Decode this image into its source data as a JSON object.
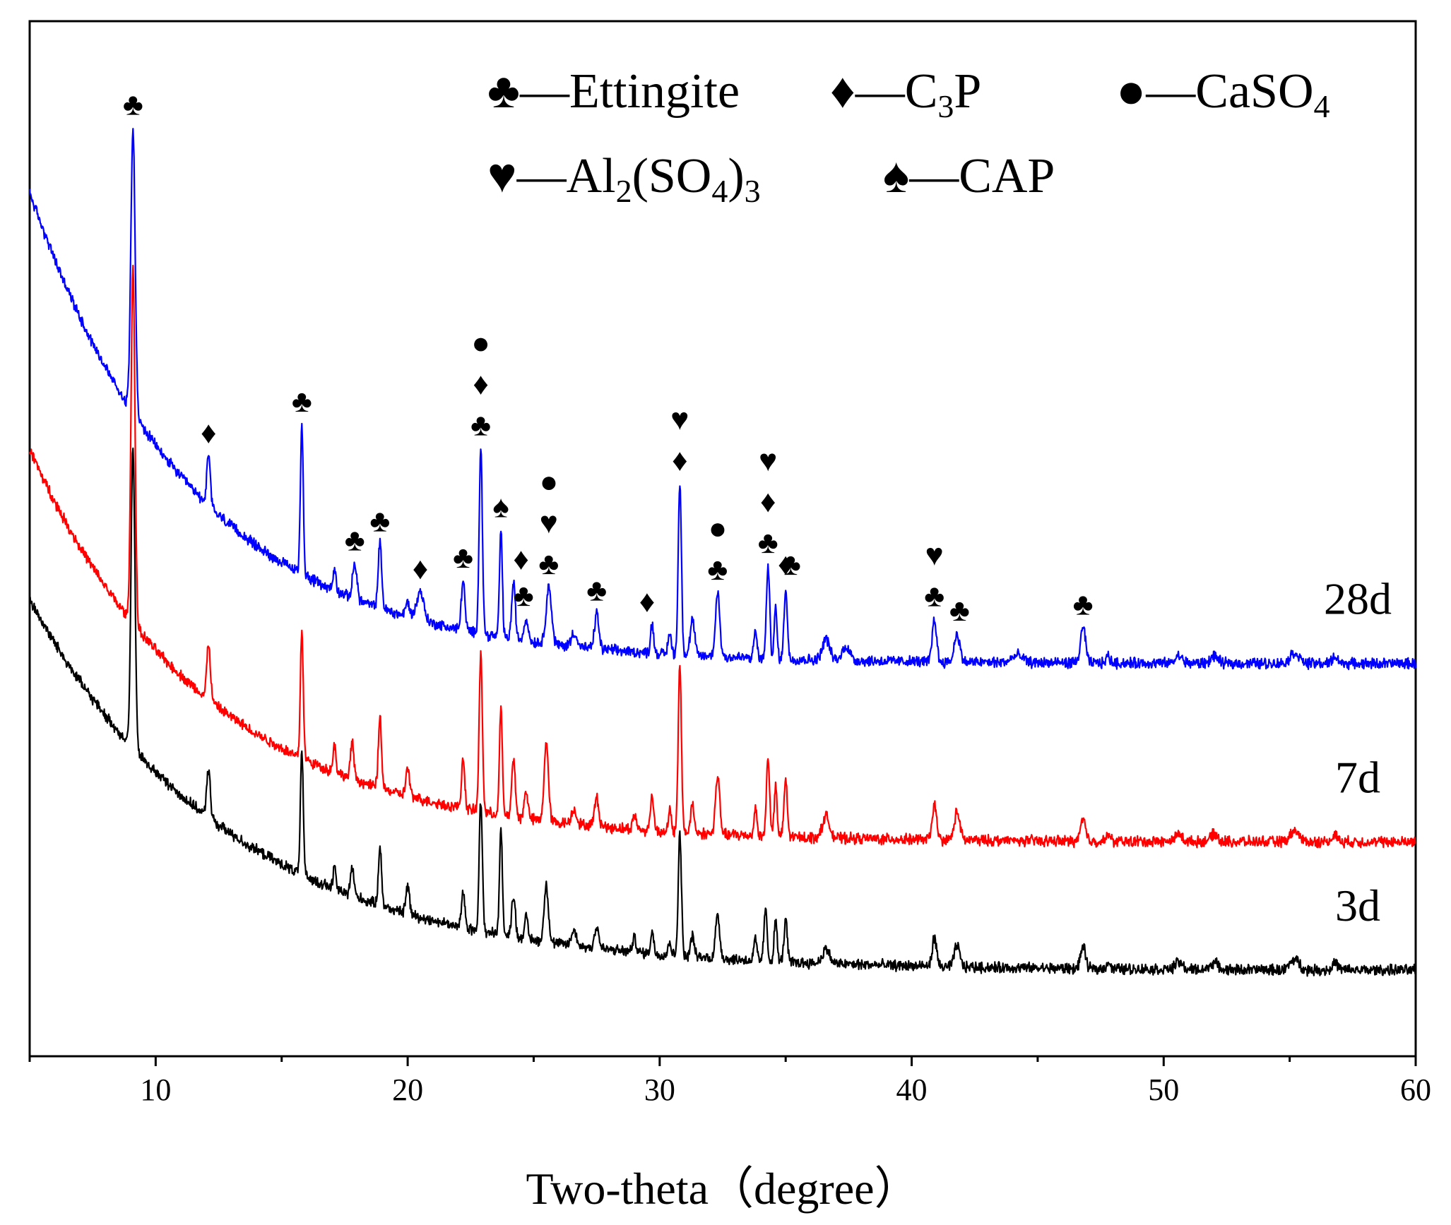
{
  "chart_data": {
    "type": "line",
    "title": "",
    "xlabel": "Two-theta（degree）",
    "ylabel": "",
    "xlim": [
      5,
      60
    ],
    "xticks": [
      10,
      20,
      30,
      40,
      50,
      60
    ],
    "xtick_labels": [
      "10",
      "20",
      "30",
      "40",
      "50",
      "60"
    ],
    "y_ticks_shown": false,
    "grid": false,
    "colors": {
      "28d": "#0000ff",
      "7d": "#ff0000",
      "3d": "#000000",
      "axis": "#000000"
    },
    "series": [
      {
        "name": "28d",
        "label": "28d",
        "color": "#0000ff",
        "baseline": 0.05,
        "background": {
          "amplitude": 0.66,
          "decay": 6.5
        },
        "peaks": [
          [
            9.1,
            0.4,
            0.12
          ],
          [
            12.1,
            0.07,
            0.1
          ],
          [
            15.8,
            0.21,
            0.08
          ],
          [
            17.1,
            0.03,
            0.08
          ],
          [
            17.9,
            0.05,
            0.12
          ],
          [
            18.9,
            0.09,
            0.1
          ],
          [
            20.0,
            0.02,
            0.12
          ],
          [
            20.5,
            0.04,
            0.2
          ],
          [
            22.2,
            0.07,
            0.1
          ],
          [
            22.9,
            0.26,
            0.09
          ],
          [
            23.7,
            0.15,
            0.08
          ],
          [
            24.2,
            0.08,
            0.1
          ],
          [
            24.7,
            0.03,
            0.12
          ],
          [
            25.6,
            0.08,
            0.15
          ],
          [
            26.6,
            0.02,
            0.15
          ],
          [
            27.5,
            0.05,
            0.12
          ],
          [
            29.7,
            0.04,
            0.09
          ],
          [
            30.4,
            0.03,
            0.09
          ],
          [
            30.8,
            0.24,
            0.09
          ],
          [
            31.3,
            0.05,
            0.12
          ],
          [
            32.3,
            0.09,
            0.12
          ],
          [
            33.8,
            0.04,
            0.08
          ],
          [
            34.3,
            0.13,
            0.09
          ],
          [
            34.6,
            0.07,
            0.08
          ],
          [
            35.0,
            0.1,
            0.09
          ],
          [
            36.6,
            0.03,
            0.2
          ],
          [
            37.4,
            0.02,
            0.2
          ],
          [
            40.9,
            0.06,
            0.12
          ],
          [
            41.8,
            0.04,
            0.15
          ],
          [
            44.2,
            0.01,
            0.3
          ],
          [
            46.8,
            0.05,
            0.14
          ],
          [
            47.8,
            0.01,
            0.1
          ],
          [
            50.6,
            0.01,
            0.2
          ],
          [
            52.0,
            0.01,
            0.2
          ],
          [
            55.2,
            0.015,
            0.25
          ],
          [
            56.8,
            0.01,
            0.15
          ]
        ]
      },
      {
        "name": "7d",
        "label": "7d",
        "color": "#ff0000",
        "baseline": -0.2,
        "background": {
          "amplitude": 0.55,
          "decay": 7.0
        },
        "peaks": [
          [
            9.1,
            0.5,
            0.11
          ],
          [
            12.1,
            0.08,
            0.1
          ],
          [
            15.8,
            0.18,
            0.08
          ],
          [
            17.1,
            0.04,
            0.08
          ],
          [
            17.8,
            0.05,
            0.1
          ],
          [
            18.9,
            0.1,
            0.09
          ],
          [
            20.0,
            0.04,
            0.1
          ],
          [
            22.2,
            0.07,
            0.09
          ],
          [
            22.9,
            0.22,
            0.09
          ],
          [
            23.7,
            0.15,
            0.08
          ],
          [
            24.2,
            0.08,
            0.1
          ],
          [
            24.7,
            0.04,
            0.1
          ],
          [
            25.5,
            0.11,
            0.12
          ],
          [
            26.6,
            0.02,
            0.15
          ],
          [
            27.5,
            0.04,
            0.12
          ],
          [
            29.0,
            0.02,
            0.1
          ],
          [
            29.7,
            0.05,
            0.09
          ],
          [
            30.4,
            0.03,
            0.08
          ],
          [
            30.8,
            0.23,
            0.09
          ],
          [
            31.3,
            0.04,
            0.1
          ],
          [
            32.3,
            0.08,
            0.12
          ],
          [
            33.8,
            0.04,
            0.08
          ],
          [
            34.3,
            0.11,
            0.09
          ],
          [
            34.6,
            0.07,
            0.08
          ],
          [
            35.0,
            0.08,
            0.09
          ],
          [
            36.6,
            0.03,
            0.2
          ],
          [
            40.9,
            0.05,
            0.12
          ],
          [
            41.8,
            0.04,
            0.15
          ],
          [
            46.8,
            0.03,
            0.14
          ],
          [
            47.8,
            0.01,
            0.1
          ],
          [
            50.6,
            0.01,
            0.2
          ],
          [
            52.0,
            0.01,
            0.2
          ],
          [
            55.2,
            0.015,
            0.25
          ],
          [
            56.8,
            0.01,
            0.15
          ]
        ]
      },
      {
        "name": "3d",
        "label": "3d",
        "color": "#000000",
        "baseline": -0.38,
        "background": {
          "amplitude": 0.52,
          "decay": 8.0
        },
        "peaks": [
          [
            9.1,
            0.42,
            0.11
          ],
          [
            12.1,
            0.07,
            0.1
          ],
          [
            15.8,
            0.17,
            0.08
          ],
          [
            17.1,
            0.03,
            0.08
          ],
          [
            17.8,
            0.04,
            0.1
          ],
          [
            18.9,
            0.08,
            0.09
          ],
          [
            20.0,
            0.04,
            0.1
          ],
          [
            22.2,
            0.05,
            0.09
          ],
          [
            22.9,
            0.18,
            0.09
          ],
          [
            23.7,
            0.15,
            0.08
          ],
          [
            24.2,
            0.06,
            0.1
          ],
          [
            24.7,
            0.03,
            0.1
          ],
          [
            25.5,
            0.08,
            0.12
          ],
          [
            26.6,
            0.02,
            0.15
          ],
          [
            27.5,
            0.03,
            0.12
          ],
          [
            29.0,
            0.02,
            0.1
          ],
          [
            29.7,
            0.03,
            0.09
          ],
          [
            30.4,
            0.02,
            0.08
          ],
          [
            30.8,
            0.17,
            0.09
          ],
          [
            31.3,
            0.03,
            0.1
          ],
          [
            32.3,
            0.06,
            0.12
          ],
          [
            33.8,
            0.03,
            0.08
          ],
          [
            34.2,
            0.07,
            0.09
          ],
          [
            34.6,
            0.06,
            0.08
          ],
          [
            35.0,
            0.06,
            0.09
          ],
          [
            36.6,
            0.02,
            0.2
          ],
          [
            40.9,
            0.04,
            0.12
          ],
          [
            41.8,
            0.03,
            0.15
          ],
          [
            46.8,
            0.03,
            0.14
          ],
          [
            47.8,
            0.01,
            0.1
          ],
          [
            50.6,
            0.01,
            0.2
          ],
          [
            52.0,
            0.01,
            0.2
          ],
          [
            55.2,
            0.015,
            0.25
          ],
          [
            56.8,
            0.01,
            0.15
          ]
        ]
      }
    ],
    "legend": {
      "placement": "top",
      "entries": [
        {
          "symbol": "club",
          "glyph": "♣",
          "dash": "—",
          "text": "Ettingite",
          "sub": "",
          "tail": ""
        },
        {
          "symbol": "diamond",
          "glyph": "♦",
          "dash": "—",
          "text": "C",
          "sub": "3",
          "tail": "P"
        },
        {
          "symbol": "circle",
          "glyph": "●",
          "dash": "—",
          "text": "CaSO",
          "sub": "4",
          "tail": ""
        },
        {
          "symbol": "heart",
          "glyph": "♥",
          "dash": "—",
          "text": "Al",
          "sub": "2",
          "tail": "(SO",
          "sub2": "4",
          "tail2": ")",
          "sub3": "3"
        },
        {
          "symbol": "spade",
          "glyph": "♠",
          "dash": "—",
          "text": "CAP",
          "sub": "",
          "tail": ""
        }
      ]
    },
    "annotations": [
      {
        "x": 9.1,
        "stack": [
          "♣"
        ]
      },
      {
        "x": 12.1,
        "stack": [
          "♦"
        ]
      },
      {
        "x": 15.8,
        "stack": [
          "♣"
        ]
      },
      {
        "x": 17.9,
        "stack": [
          "♣"
        ]
      },
      {
        "x": 18.9,
        "stack": [
          "♣"
        ]
      },
      {
        "x": 20.5,
        "stack": [
          "♦"
        ]
      },
      {
        "x": 22.2,
        "stack": [
          "♣"
        ]
      },
      {
        "x": 22.9,
        "stack": [
          "♣",
          "♦",
          "●"
        ]
      },
      {
        "x": 23.7,
        "stack": [
          "♠"
        ]
      },
      {
        "x": 24.5,
        "stack": [
          "♦"
        ]
      },
      {
        "x": 24.6,
        "stack": [
          "♣"
        ]
      },
      {
        "x": 25.6,
        "stack": [
          "♣",
          "♥",
          "●"
        ]
      },
      {
        "x": 27.5,
        "stack": [
          "♣"
        ]
      },
      {
        "x": 29.5,
        "stack": [
          "♦"
        ]
      },
      {
        "x": 30.8,
        "stack": [
          "♦",
          "♥"
        ]
      },
      {
        "x": 32.3,
        "stack": [
          "♣",
          "●"
        ]
      },
      {
        "x": 34.3,
        "stack": [
          "♣",
          "♦",
          "♥"
        ]
      },
      {
        "x": 35.0,
        "stack": [
          "♦"
        ]
      },
      {
        "x": 35.2,
        "stack": [
          "♣"
        ]
      },
      {
        "x": 40.9,
        "stack": [
          "♣",
          "♥"
        ]
      },
      {
        "x": 41.9,
        "stack": [
          "♣"
        ]
      },
      {
        "x": 46.8,
        "stack": [
          "♣"
        ]
      }
    ]
  }
}
